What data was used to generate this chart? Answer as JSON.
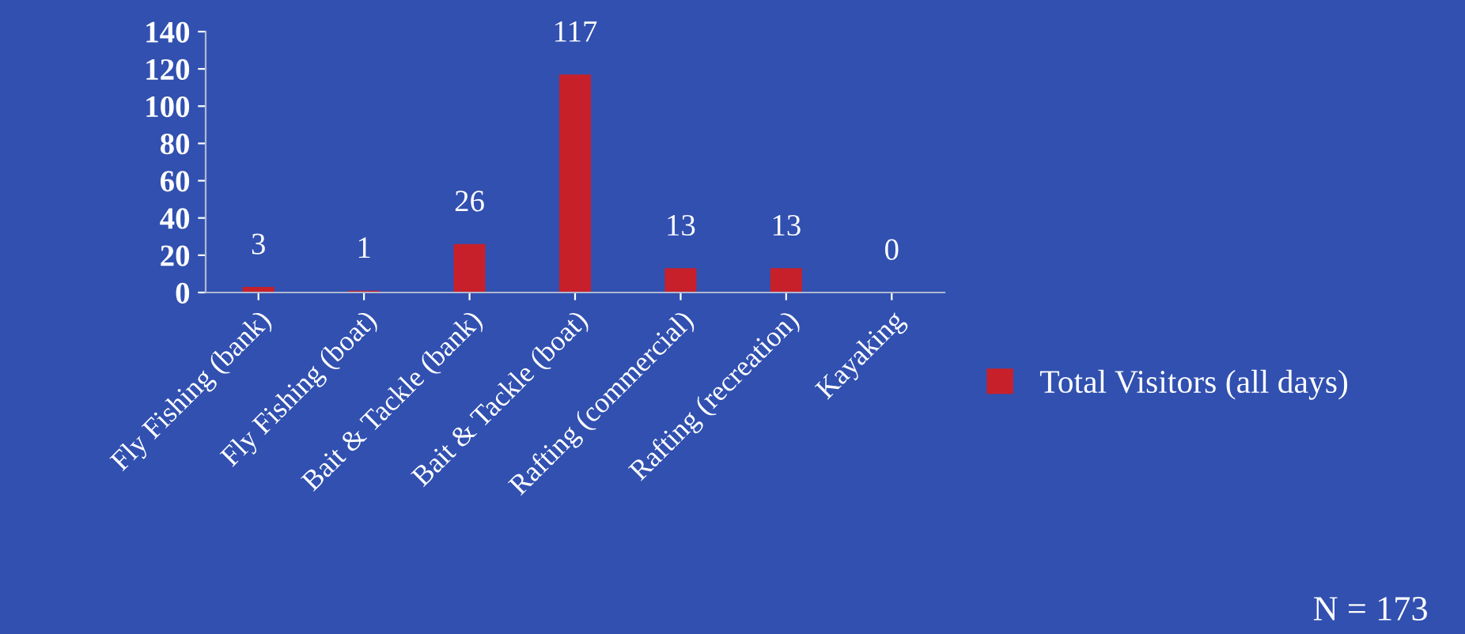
{
  "chart_data": {
    "type": "bar",
    "categories": [
      "Fly Fishing (bank)",
      "Fly Fishing (boat)",
      "Bait & Tackle (bank)",
      "Bait & Tackle (boat)",
      "Rafting (commercial)",
      "Rafting (recreation)",
      "Kayaking"
    ],
    "series": [
      {
        "name": "Total Visitors (all days)",
        "color": "#c8202a",
        "values": [
          3,
          1,
          26,
          117,
          13,
          13,
          0
        ]
      }
    ],
    "ylim": [
      0,
      140
    ],
    "yticks": [
      0,
      20,
      40,
      60,
      80,
      100,
      120,
      140
    ],
    "data_labels": true,
    "legend": "right",
    "grid": false,
    "annotations": [
      "N = 173"
    ]
  }
}
